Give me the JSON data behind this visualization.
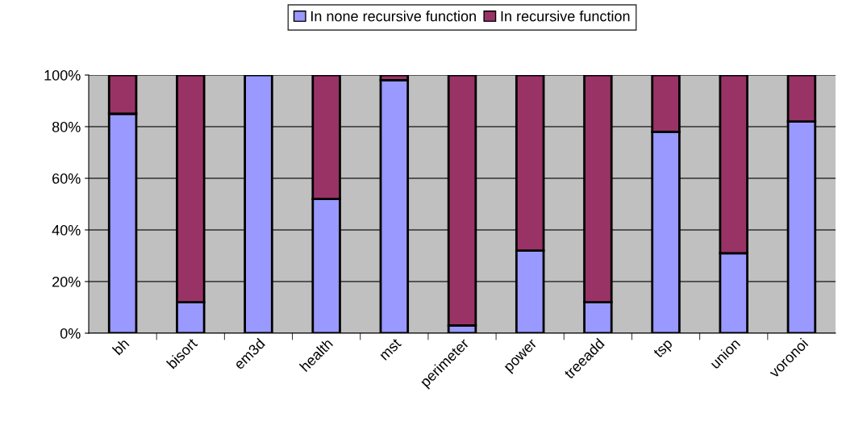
{
  "chart_data": {
    "type": "bar",
    "stacked": true,
    "categories": [
      "bh",
      "bisort",
      "em3d",
      "health",
      "mst",
      "perimeter",
      "power",
      "treeadd",
      "tsp",
      "union",
      "voronoi"
    ],
    "series": [
      {
        "name": "In none recursive function",
        "color": "#9999ff",
        "values": [
          85,
          12,
          100,
          52,
          98,
          3,
          32,
          12,
          78,
          31,
          82
        ]
      },
      {
        "name": "In recursive function",
        "color": "#993366",
        "values": [
          15,
          88,
          null,
          48,
          2,
          97,
          68,
          88,
          22,
          69,
          18
        ]
      }
    ],
    "ylim": [
      0,
      100
    ],
    "yticks": [
      {
        "value": 0,
        "label": "0%"
      },
      {
        "value": 20,
        "label": "20%"
      },
      {
        "value": 40,
        "label": "40%"
      },
      {
        "value": 60,
        "label": "60%"
      },
      {
        "value": 80,
        "label": "80%"
      },
      {
        "value": 100,
        "label": "100%"
      }
    ],
    "grid": "y",
    "legend": "top"
  }
}
